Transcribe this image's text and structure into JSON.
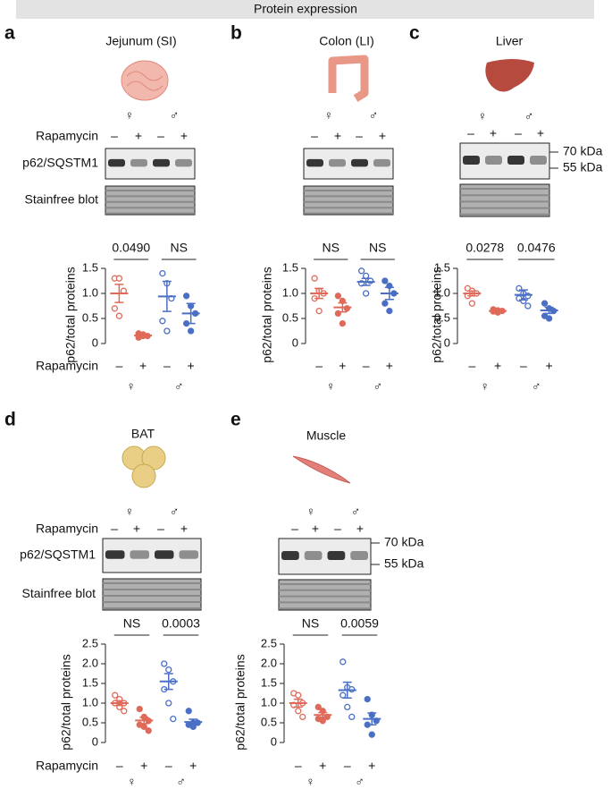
{
  "header": {
    "title": "Protein expression"
  },
  "chart_data": [
    {
      "type": "dotplot",
      "panel": "a",
      "title": "Jejunum (SI)",
      "sex_labels": [
        "♀",
        "♂"
      ],
      "blot_row_label": "Rapamycin",
      "blot_labels": [
        "p62/SQSTM1",
        "Stainfree blot"
      ],
      "ylabel": "p62/total proteins",
      "xlabel": "Rapamycin",
      "categories": [
        "–",
        "+",
        "–",
        "+"
      ],
      "ylim": [
        0,
        1.5
      ],
      "yticks": [
        0,
        0.5,
        {
          "value": 1,
          "label": "1.0"
        },
        1.5
      ],
      "comparisons": [
        "0.0490",
        "NS"
      ],
      "groups": [
        {
          "color": "#e06a5a",
          "filled": false,
          "points": [
            1.3,
            1.3,
            1.05,
            0.7,
            0.55
          ],
          "mean": 1.0,
          "sem": 0.18
        },
        {
          "color": "#e06a5a",
          "filled": true,
          "points": [
            0.2,
            0.15,
            0.15,
            0.12,
            0.18
          ],
          "mean": 0.16,
          "sem": 0.02
        },
        {
          "color": "#4a6fc4",
          "filled": false,
          "points": [
            1.4,
            1.2,
            0.9,
            0.45,
            0.25
          ],
          "mean": 0.94,
          "sem": 0.3
        },
        {
          "color": "#4a6fc4",
          "filled": true,
          "points": [
            0.95,
            0.75,
            0.6,
            0.4,
            0.25
          ],
          "mean": 0.6,
          "sem": 0.2
        }
      ]
    },
    {
      "type": "dotplot",
      "panel": "b",
      "title": "Colon (LI)",
      "sex_labels": [
        "♀",
        "♂"
      ],
      "ylabel": "p62/total proteins",
      "categories": [
        "–",
        "+",
        "–",
        "+"
      ],
      "ylim": [
        0,
        1.5
      ],
      "yticks": [
        0,
        0.5,
        {
          "value": 1,
          "label": "1.0"
        },
        1.5
      ],
      "comparisons": [
        "NS",
        "NS"
      ],
      "groups": [
        {
          "color": "#e06a5a",
          "filled": false,
          "points": [
            1.3,
            1.05,
            1.0,
            0.9,
            0.65
          ],
          "mean": 1.0,
          "sem": 0.1
        },
        {
          "color": "#e06a5a",
          "filled": true,
          "points": [
            0.95,
            0.85,
            0.7,
            0.6,
            0.4
          ],
          "mean": 0.72,
          "sem": 0.09
        },
        {
          "color": "#4a6fc4",
          "filled": false,
          "points": [
            1.45,
            1.35,
            1.25,
            1.2,
            1.0
          ],
          "mean": 1.23,
          "sem": 0.07
        },
        {
          "color": "#4a6fc4",
          "filled": true,
          "points": [
            1.25,
            1.15,
            1.0,
            0.8,
            0.65
          ],
          "mean": 1.0,
          "sem": 0.12
        }
      ]
    },
    {
      "type": "dotplot",
      "panel": "c",
      "title": "Liver",
      "sex_labels": [
        "♀",
        "♂"
      ],
      "kda_labels": [
        "70 kDa",
        "55 kDa"
      ],
      "ylabel": "p62/total proteins",
      "categories": [
        "–",
        "+",
        "–",
        "+"
      ],
      "ylim": [
        0,
        1.5
      ],
      "yticks": [
        0,
        0.5,
        {
          "value": 1,
          "label": "1.0"
        },
        1.5
      ],
      "comparisons": [
        "0.0278",
        "0.0476"
      ],
      "groups": [
        {
          "color": "#e06a5a",
          "filled": false,
          "points": [
            1.1,
            1.05,
            1.0,
            0.95,
            0.8
          ],
          "mean": 1.0,
          "sem": 0.05
        },
        {
          "color": "#e06a5a",
          "filled": true,
          "points": [
            0.68,
            0.66,
            0.65,
            0.64,
            0.62
          ],
          "mean": 0.65,
          "sem": 0.02
        },
        {
          "color": "#4a6fc4",
          "filled": false,
          "points": [
            1.1,
            1.0,
            0.95,
            0.9,
            0.85,
            0.75
          ],
          "mean": 0.97,
          "sem": 0.1
        },
        {
          "color": "#4a6fc4",
          "filled": true,
          "points": [
            0.8,
            0.7,
            0.65,
            0.55,
            0.5
          ],
          "mean": 0.66,
          "sem": 0.06
        }
      ]
    },
    {
      "type": "dotplot",
      "panel": "d",
      "title": "BAT",
      "sex_labels": [
        "♀",
        "♂"
      ],
      "blot_row_label": "Rapamycin",
      "blot_labels": [
        "p62/SQSTM1",
        "Stainfree blot"
      ],
      "ylabel": "p62/total proteins",
      "xlabel": "Rapamycin",
      "categories": [
        "–",
        "+",
        "–",
        "+"
      ],
      "ylim": [
        0,
        2.5
      ],
      "yticks": [
        0,
        0.5,
        {
          "value": 1,
          "label": "1.0"
        },
        1.5,
        {
          "value": 2,
          "label": "2.0"
        },
        2.5
      ],
      "comparisons": [
        "NS",
        "0.0003"
      ],
      "groups": [
        {
          "color": "#e06a5a",
          "filled": false,
          "points": [
            1.2,
            1.1,
            1.0,
            1.0,
            0.9,
            0.8
          ],
          "mean": 1.0,
          "sem": 0.06
        },
        {
          "color": "#e06a5a",
          "filled": true,
          "points": [
            0.85,
            0.65,
            0.55,
            0.45,
            0.4,
            0.3
          ],
          "mean": 0.56,
          "sem": 0.08
        },
        {
          "color": "#4a6fc4",
          "filled": false,
          "points": [
            2.0,
            1.85,
            1.55,
            1.35,
            1.0,
            0.6
          ],
          "mean": 1.55,
          "sem": 0.2
        },
        {
          "color": "#4a6fc4",
          "filled": true,
          "points": [
            0.8,
            0.5,
            0.5,
            0.45,
            0.4
          ],
          "mean": 0.52,
          "sem": 0.07
        }
      ]
    },
    {
      "type": "dotplot",
      "panel": "e",
      "title": "Muscle",
      "sex_labels": [
        "♀",
        "♂"
      ],
      "kda_labels": [
        "70 kDa",
        "55 kDa"
      ],
      "ylabel": "p62/total proteins",
      "categories": [
        "–",
        "+",
        "–",
        "+"
      ],
      "ylim": [
        0,
        2.5
      ],
      "yticks": [
        0,
        0.5,
        {
          "value": 1,
          "label": "1.0"
        },
        1.5,
        {
          "value": 2,
          "label": "2.0"
        },
        2.5
      ],
      "comparisons": [
        "NS",
        "0.0059"
      ],
      "groups": [
        {
          "color": "#e06a5a",
          "filled": false,
          "points": [
            1.25,
            1.2,
            1.0,
            0.95,
            0.8,
            0.65
          ],
          "mean": 1.0,
          "sem": 0.1
        },
        {
          "color": "#e06a5a",
          "filled": true,
          "points": [
            0.9,
            0.8,
            0.65,
            0.6,
            0.55
          ],
          "mean": 0.7,
          "sem": 0.06
        },
        {
          "color": "#4a6fc4",
          "filled": false,
          "points": [
            2.05,
            1.4,
            1.35,
            1.2,
            0.9,
            0.65
          ],
          "mean": 1.33,
          "sem": 0.2
        },
        {
          "color": "#4a6fc4",
          "filled": true,
          "points": [
            1.1,
            0.7,
            0.55,
            0.45,
            0.2
          ],
          "mean": 0.6,
          "sem": 0.15
        }
      ]
    }
  ]
}
